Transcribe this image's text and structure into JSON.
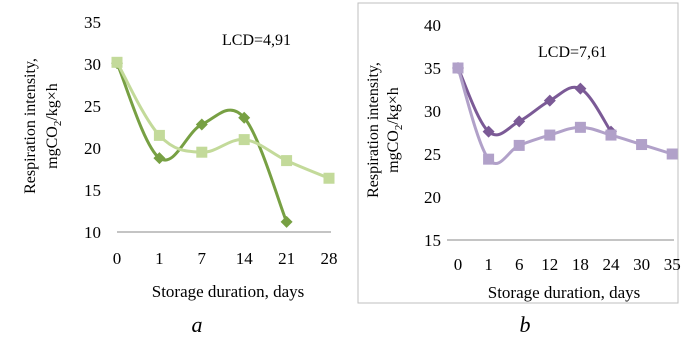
{
  "chart_data": [
    {
      "type": "line",
      "panel_label": "a",
      "annotation": "LCD=4,91",
      "xlabel": "Storage duration, days",
      "ylabel": [
        "Respiration intensity,",
        "mgCO",
        "2",
        "/kg×h"
      ],
      "categories": [
        "0",
        "1",
        "7",
        "14",
        "21",
        "28"
      ],
      "ylim": [
        10,
        35
      ],
      "yticks": [
        "10",
        "15",
        "20",
        "25",
        "30",
        "35"
      ],
      "grid": false,
      "series": [
        {
          "color": "#77a043",
          "marker": "diamond",
          "values": [
            30.1,
            18.8,
            22.8,
            23.6,
            11.2,
            null
          ]
        },
        {
          "color": "#c3da9a",
          "marker": "square",
          "values": [
            30.2,
            21.5,
            19.5,
            21.0,
            18.5,
            16.4
          ]
        }
      ]
    },
    {
      "type": "line",
      "panel_label": "b",
      "annotation": "LCD=7,61",
      "xlabel": "Storage duration,  days",
      "ylabel": [
        "Respiration  intensity,",
        "mgCO",
        "2",
        "/kg×h"
      ],
      "categories": [
        "0",
        "1",
        "6",
        "12",
        "18",
        "24",
        "30",
        "35"
      ],
      "ylim": [
        15,
        40
      ],
      "yticks": [
        "15",
        "20",
        "25",
        "30",
        "35",
        "40"
      ],
      "grid": false,
      "series": [
        {
          "color": "#7b5a96",
          "marker": "diamond",
          "values": [
            35.0,
            27.6,
            28.8,
            31.2,
            32.6,
            27.6,
            null,
            null
          ]
        },
        {
          "color": "#b1a1c9",
          "marker": "square",
          "values": [
            35.0,
            24.4,
            26.0,
            27.2,
            28.1,
            27.2,
            26.1,
            25.0
          ]
        }
      ]
    }
  ]
}
